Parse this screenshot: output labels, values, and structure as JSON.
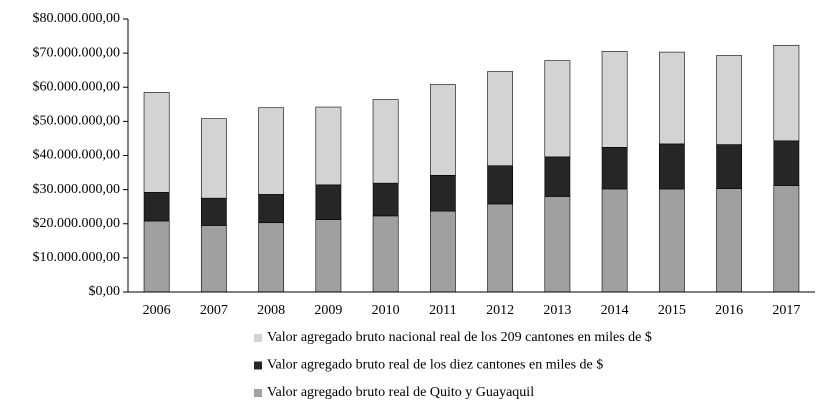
{
  "chart_data": {
    "type": "stacked_bar",
    "categories": [
      "2006",
      "2007",
      "2008",
      "2009",
      "2010",
      "2011",
      "2012",
      "2013",
      "2014",
      "2015",
      "2016",
      "2017"
    ],
    "series": [
      {
        "name": "Valor agregado bruto real de Quito y Guayaquil",
        "color": "#a0a0a0",
        "values": [
          20800000,
          19500000,
          20300000,
          21200000,
          22300000,
          23700000,
          25800000,
          28000000,
          30200000,
          30200000,
          30300000,
          31200000
        ]
      },
      {
        "name": "Valor agregado bruto real de los diez cantones en miles de $",
        "color": "#262626",
        "values": [
          8400000,
          8000000,
          8300000,
          10200000,
          9600000,
          10500000,
          11200000,
          11600000,
          12200000,
          13200000,
          12900000,
          13100000
        ]
      },
      {
        "name": "Valor agregado bruto nacional real de los 209 cantones  en miles de $",
        "color": "#d3d3d3",
        "values": [
          29300000,
          23300000,
          25400000,
          22800000,
          24500000,
          26600000,
          27600000,
          28200000,
          28100000,
          26900000,
          26100000,
          28000000
        ]
      }
    ],
    "ylim": [
      0,
      80000000
    ],
    "yticks": [
      {
        "value": 0,
        "label": "$0,00"
      },
      {
        "value": 10000000,
        "label": "$10.000.000,00"
      },
      {
        "value": 20000000,
        "label": "$20.000.000,00"
      },
      {
        "value": 30000000,
        "label": "$30.000.000,00"
      },
      {
        "value": 40000000,
        "label": "$40.000.000,00"
      },
      {
        "value": 50000000,
        "label": "$50.000.000,00"
      },
      {
        "value": 60000000,
        "label": "$60.000.000,00"
      },
      {
        "value": 70000000,
        "label": "$70.000.000,00"
      },
      {
        "value": 80000000,
        "label": "$80.000.000,00"
      }
    ],
    "grid": false,
    "legend": "bottom"
  }
}
